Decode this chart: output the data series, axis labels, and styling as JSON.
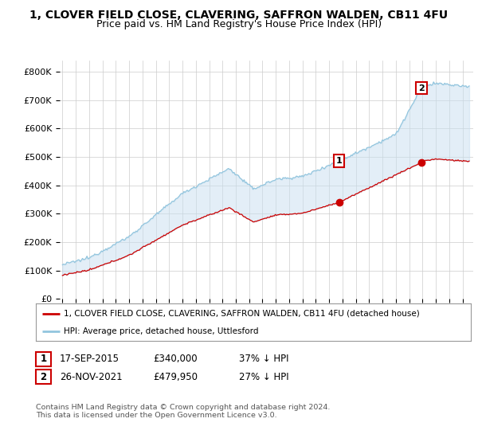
{
  "title": "1, CLOVER FIELD CLOSE, CLAVERING, SAFFRON WALDEN, CB11 4FU",
  "subtitle": "Price paid vs. HM Land Registry's House Price Index (HPI)",
  "ylabel_ticks": [
    "£0",
    "£100K",
    "£200K",
    "£300K",
    "£400K",
    "£500K",
    "£600K",
    "£700K",
    "£800K"
  ],
  "ytick_values": [
    0,
    100000,
    200000,
    300000,
    400000,
    500000,
    600000,
    700000,
    800000
  ],
  "ylim": [
    0,
    840000
  ],
  "hpi_color": "#92c5de",
  "hpi_fill_color": "#c8dff0",
  "price_color": "#cc0000",
  "background_color": "#ffffff",
  "grid_color": "#cccccc",
  "legend_label_price": "1, CLOVER FIELD CLOSE, CLAVERING, SAFFRON WALDEN, CB11 4FU (detached house)",
  "legend_label_hpi": "HPI: Average price, detached house, Uttlesford",
  "transaction1_date": "17-SEP-2015",
  "transaction1_price": 340000,
  "transaction1_label": "£340,000",
  "transaction1_pct": "37% ↓ HPI",
  "transaction2_date": "26-NOV-2021",
  "transaction2_price": 479950,
  "transaction2_label": "£479,950",
  "transaction2_pct": "27% ↓ HPI",
  "footer": "Contains HM Land Registry data © Crown copyright and database right 2024.\nThis data is licensed under the Open Government Licence v3.0.",
  "title_fontsize": 10,
  "subtitle_fontsize": 9
}
